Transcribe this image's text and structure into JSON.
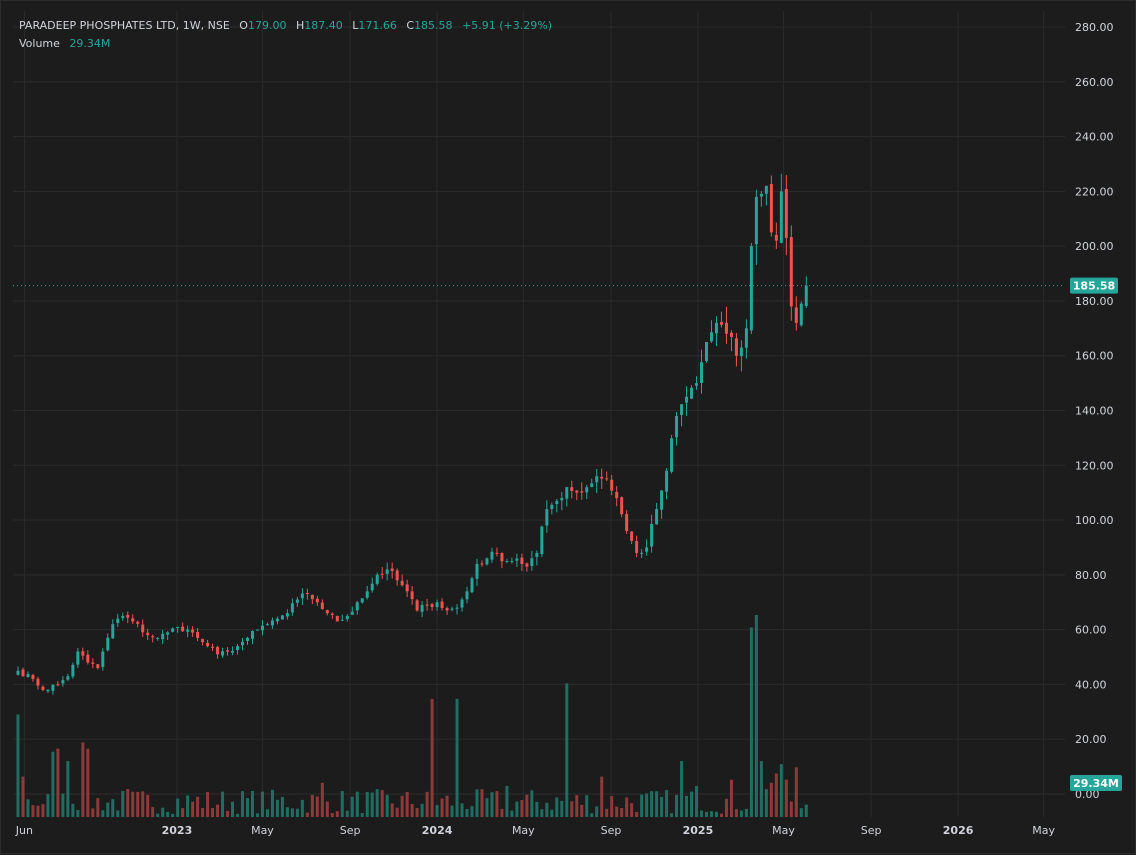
{
  "header": {
    "symbol": "PARADEEP PHOSPHATES LTD, 1W, NSE",
    "o_label": "O",
    "o_value": "179.00",
    "h_label": "H",
    "h_value": "187.40",
    "l_label": "L",
    "l_value": "171.66",
    "c_label": "C",
    "c_value": "185.58",
    "change": "+5.91 (+3.29%)",
    "volume_label": "Volume",
    "volume_value": "29.34M"
  },
  "colors": {
    "up": "#26a69a",
    "down": "#ef5350",
    "vol_up": "#1f6e62",
    "vol_down": "#8e3a3a",
    "grid": "#2b2b2b",
    "axis_text": "#d1d4dc",
    "price_line": "#26a69a"
  },
  "chart_data": {
    "type": "candlestick",
    "timeframe": "1W",
    "ylim": [
      0,
      280
    ],
    "y_ticks": [
      "280.00",
      "260.00",
      "240.00",
      "220.00",
      "200.00",
      "180.00",
      "160.00",
      "140.00",
      "120.00",
      "100.00",
      "80.00",
      "60.00",
      "40.00",
      "20.00",
      "0.00"
    ],
    "x_tick_labels": [
      "Jun",
      "2023",
      "May",
      "Sep",
      "2024",
      "May",
      "Sep",
      "2025",
      "May",
      "Sep",
      "2026",
      "May"
    ],
    "x_tick_dates": [
      "2022-06-01",
      "2023-01-01",
      "2023-05-01",
      "2023-09-01",
      "2024-01-01",
      "2024-05-01",
      "2024-09-01",
      "2025-01-01",
      "2025-05-01",
      "2025-09-01",
      "2026-01-01",
      "2026-05-01"
    ],
    "x_range": [
      "2022-05-16",
      "2026-05-31"
    ],
    "first_candle_date": "2022-05-23",
    "last_price": 185.58,
    "last_price_label": "185.58",
    "last_volume_label": "29.34M",
    "volume_max_millions": 65,
    "close_key_points": [
      [
        0,
        45
      ],
      [
        3,
        42
      ],
      [
        5,
        38
      ],
      [
        8,
        40
      ],
      [
        10,
        43
      ],
      [
        12,
        52
      ],
      [
        14,
        48
      ],
      [
        16,
        46
      ],
      [
        17,
        52
      ],
      [
        19,
        62
      ],
      [
        21,
        65
      ],
      [
        23,
        63
      ],
      [
        26,
        58
      ],
      [
        28,
        57
      ],
      [
        30,
        59
      ],
      [
        32,
        61
      ],
      [
        34,
        60
      ],
      [
        36,
        57
      ],
      [
        38,
        54
      ],
      [
        40,
        51
      ],
      [
        42,
        52
      ],
      [
        44,
        54
      ],
      [
        46,
        57
      ],
      [
        48,
        60
      ],
      [
        50,
        62
      ],
      [
        52,
        64
      ],
      [
        54,
        66
      ],
      [
        56,
        71
      ],
      [
        58,
        73
      ],
      [
        60,
        70
      ],
      [
        62,
        66
      ],
      [
        64,
        63
      ],
      [
        66,
        65
      ],
      [
        68,
        70
      ],
      [
        70,
        74
      ],
      [
        72,
        80
      ],
      [
        74,
        82
      ],
      [
        76,
        78
      ],
      [
        78,
        74
      ],
      [
        80,
        67
      ],
      [
        82,
        69
      ],
      [
        84,
        70
      ],
      [
        86,
        67
      ],
      [
        88,
        68
      ],
      [
        90,
        74
      ],
      [
        92,
        84
      ],
      [
        94,
        86
      ],
      [
        96,
        88
      ],
      [
        98,
        85
      ],
      [
        100,
        86
      ],
      [
        102,
        83
      ],
      [
        104,
        88
      ],
      [
        106,
        104
      ],
      [
        108,
        107
      ],
      [
        110,
        112
      ],
      [
        112,
        110
      ],
      [
        114,
        112
      ],
      [
        116,
        116
      ],
      [
        118,
        115
      ],
      [
        120,
        108
      ],
      [
        122,
        96
      ],
      [
        124,
        88
      ],
      [
        126,
        90
      ],
      [
        128,
        104
      ],
      [
        130,
        118
      ],
      [
        132,
        138
      ],
      [
        134,
        145
      ],
      [
        136,
        150
      ],
      [
        138,
        165
      ],
      [
        140,
        172
      ],
      [
        142,
        168
      ],
      [
        144,
        160
      ],
      [
        145,
        163
      ],
      [
        146,
        170
      ],
      [
        147,
        200
      ],
      [
        148,
        218
      ],
      [
        150,
        222
      ],
      [
        151,
        205
      ],
      [
        152,
        202
      ],
      [
        153,
        220
      ],
      [
        154,
        203
      ],
      [
        155,
        178
      ],
      [
        156,
        172
      ],
      [
        157,
        179
      ],
      [
        158,
        185.58
      ]
    ],
    "volume_spikes": [
      [
        0,
        33
      ],
      [
        1,
        13
      ],
      [
        7,
        21
      ],
      [
        8,
        22
      ],
      [
        10,
        18
      ],
      [
        13,
        24
      ],
      [
        14,
        22
      ],
      [
        22,
        9
      ],
      [
        61,
        11
      ],
      [
        83,
        38
      ],
      [
        88,
        38
      ],
      [
        98,
        10
      ],
      [
        110,
        43
      ],
      [
        117,
        13
      ],
      [
        133,
        18
      ],
      [
        136,
        10
      ],
      [
        143,
        12
      ],
      [
        147,
        61
      ],
      [
        148,
        65
      ],
      [
        149,
        18
      ],
      [
        151,
        11
      ],
      [
        152,
        14
      ],
      [
        153,
        17
      ],
      [
        154,
        12
      ],
      [
        155,
        5
      ],
      [
        156,
        16
      ]
    ]
  }
}
